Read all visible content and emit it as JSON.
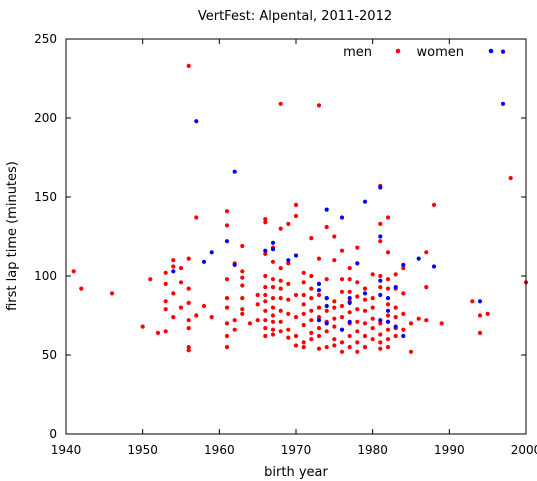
{
  "chart_data": {
    "type": "scatter",
    "title": "VertFest: Alpental, 2011-2012",
    "xlabel": "birth year",
    "ylabel": "first lap time (minutes)",
    "xlim": [
      1940,
      2000
    ],
    "ylim": [
      0,
      250
    ],
    "xticks": [
      "1940",
      "1950",
      "1960",
      "1970",
      "1980",
      "1990",
      "2000"
    ],
    "yticks": [
      "0",
      "50",
      "100",
      "150",
      "200",
      "250"
    ],
    "grid": false,
    "legend_position": "top-right",
    "series": [
      {
        "name": "men",
        "color": "#ff0000",
        "points": [
          [
            1941,
            103
          ],
          [
            1942,
            92
          ],
          [
            1946,
            89
          ],
          [
            1950,
            68
          ],
          [
            1951,
            98
          ],
          [
            1952,
            64
          ],
          [
            1953,
            65
          ],
          [
            1953,
            84
          ],
          [
            1953,
            79
          ],
          [
            1953,
            102
          ],
          [
            1953,
            95
          ],
          [
            1954,
            110
          ],
          [
            1954,
            106
          ],
          [
            1954,
            89
          ],
          [
            1954,
            74
          ],
          [
            1955,
            105
          ],
          [
            1955,
            96
          ],
          [
            1955,
            80
          ],
          [
            1956,
            233
          ],
          [
            1956,
            111
          ],
          [
            1956,
            92
          ],
          [
            1956,
            83
          ],
          [
            1956,
            72
          ],
          [
            1956,
            67
          ],
          [
            1956,
            55
          ],
          [
            1956,
            53
          ],
          [
            1957,
            137
          ],
          [
            1957,
            75
          ],
          [
            1958,
            81
          ],
          [
            1959,
            74
          ],
          [
            1961,
            141
          ],
          [
            1961,
            132
          ],
          [
            1961,
            98
          ],
          [
            1961,
            86
          ],
          [
            1961,
            80
          ],
          [
            1961,
            70
          ],
          [
            1961,
            62
          ],
          [
            1961,
            55
          ],
          [
            1962,
            108
          ],
          [
            1962,
            72
          ],
          [
            1962,
            66
          ],
          [
            1963,
            119
          ],
          [
            1963,
            103
          ],
          [
            1963,
            99
          ],
          [
            1963,
            94
          ],
          [
            1963,
            86
          ],
          [
            1963,
            79
          ],
          [
            1963,
            76
          ],
          [
            1964,
            70
          ],
          [
            1965,
            88
          ],
          [
            1965,
            82
          ],
          [
            1965,
            72
          ],
          [
            1966,
            136
          ],
          [
            1966,
            134
          ],
          [
            1966,
            114
          ],
          [
            1966,
            100
          ],
          [
            1966,
            93
          ],
          [
            1966,
            88
          ],
          [
            1966,
            84
          ],
          [
            1966,
            78
          ],
          [
            1966,
            72
          ],
          [
            1966,
            67
          ],
          [
            1966,
            62
          ],
          [
            1967,
            118
          ],
          [
            1967,
            109
          ],
          [
            1967,
            98
          ],
          [
            1967,
            93
          ],
          [
            1967,
            86
          ],
          [
            1967,
            80
          ],
          [
            1967,
            75
          ],
          [
            1967,
            71
          ],
          [
            1967,
            66
          ],
          [
            1967,
            63
          ],
          [
            1968,
            209
          ],
          [
            1968,
            130
          ],
          [
            1968,
            105
          ],
          [
            1968,
            97
          ],
          [
            1968,
            92
          ],
          [
            1968,
            86
          ],
          [
            1968,
            78
          ],
          [
            1968,
            71
          ],
          [
            1968,
            65
          ],
          [
            1969,
            133
          ],
          [
            1969,
            108
          ],
          [
            1969,
            95
          ],
          [
            1969,
            85
          ],
          [
            1969,
            76
          ],
          [
            1969,
            66
          ],
          [
            1969,
            61
          ],
          [
            1970,
            145
          ],
          [
            1970,
            138
          ],
          [
            1970,
            88
          ],
          [
            1970,
            74
          ],
          [
            1970,
            62
          ],
          [
            1970,
            56
          ],
          [
            1971,
            102
          ],
          [
            1971,
            96
          ],
          [
            1971,
            88
          ],
          [
            1971,
            82
          ],
          [
            1971,
            76
          ],
          [
            1971,
            69
          ],
          [
            1971,
            58
          ],
          [
            1971,
            55
          ],
          [
            1972,
            124
          ],
          [
            1972,
            100
          ],
          [
            1972,
            92
          ],
          [
            1972,
            86
          ],
          [
            1972,
            78
          ],
          [
            1972,
            72
          ],
          [
            1972,
            64
          ],
          [
            1972,
            60
          ],
          [
            1973,
            208
          ],
          [
            1973,
            111
          ],
          [
            1973,
            95
          ],
          [
            1973,
            88
          ],
          [
            1973,
            80
          ],
          [
            1973,
            74
          ],
          [
            1973,
            67
          ],
          [
            1973,
            62
          ],
          [
            1973,
            54
          ],
          [
            1974,
            131
          ],
          [
            1974,
            98
          ],
          [
            1974,
            86
          ],
          [
            1974,
            78
          ],
          [
            1974,
            71
          ],
          [
            1974,
            65
          ],
          [
            1974,
            55
          ],
          [
            1975,
            125
          ],
          [
            1975,
            110
          ],
          [
            1975,
            84
          ],
          [
            1975,
            80
          ],
          [
            1975,
            73
          ],
          [
            1975,
            68
          ],
          [
            1975,
            60
          ],
          [
            1975,
            56
          ],
          [
            1976,
            116
          ],
          [
            1976,
            98
          ],
          [
            1976,
            90
          ],
          [
            1976,
            81
          ],
          [
            1976,
            74
          ],
          [
            1976,
            66
          ],
          [
            1976,
            58
          ],
          [
            1976,
            52
          ],
          [
            1977,
            105
          ],
          [
            1977,
            98
          ],
          [
            1977,
            90
          ],
          [
            1977,
            84
          ],
          [
            1977,
            77
          ],
          [
            1977,
            70
          ],
          [
            1977,
            62
          ],
          [
            1977,
            55
          ],
          [
            1978,
            118
          ],
          [
            1978,
            96
          ],
          [
            1978,
            87
          ],
          [
            1978,
            79
          ],
          [
            1978,
            71
          ],
          [
            1978,
            65
          ],
          [
            1978,
            58
          ],
          [
            1978,
            52
          ],
          [
            1979,
            92
          ],
          [
            1979,
            85
          ],
          [
            1979,
            78
          ],
          [
            1979,
            70
          ],
          [
            1979,
            62
          ],
          [
            1979,
            55
          ],
          [
            1980,
            101
          ],
          [
            1980,
            86
          ],
          [
            1980,
            80
          ],
          [
            1980,
            73
          ],
          [
            1980,
            67
          ],
          [
            1980,
            60
          ],
          [
            1981,
            157
          ],
          [
            1981,
            133
          ],
          [
            1981,
            122
          ],
          [
            1981,
            100
          ],
          [
            1981,
            93
          ],
          [
            1981,
            70
          ],
          [
            1981,
            63
          ],
          [
            1981,
            58
          ],
          [
            1981,
            54
          ],
          [
            1982,
            137
          ],
          [
            1982,
            115
          ],
          [
            1982,
            98
          ],
          [
            1982,
            92
          ],
          [
            1982,
            82
          ],
          [
            1982,
            75
          ],
          [
            1982,
            71
          ],
          [
            1982,
            66
          ],
          [
            1982,
            60
          ],
          [
            1982,
            55
          ],
          [
            1983,
            101
          ],
          [
            1983,
            92
          ],
          [
            1983,
            80
          ],
          [
            1983,
            74
          ],
          [
            1983,
            67
          ],
          [
            1983,
            62
          ],
          [
            1984,
            105
          ],
          [
            1984,
            89
          ],
          [
            1984,
            76
          ],
          [
            1984,
            66
          ],
          [
            1985,
            52
          ],
          [
            1985,
            70
          ],
          [
            1986,
            73
          ],
          [
            1987,
            115
          ],
          [
            1987,
            93
          ],
          [
            1987,
            72
          ],
          [
            1988,
            145
          ],
          [
            1989,
            70
          ],
          [
            1993,
            84
          ],
          [
            1994,
            64
          ],
          [
            1994,
            75
          ],
          [
            1995,
            76
          ],
          [
            1998,
            162
          ],
          [
            2000,
            96
          ]
        ]
      },
      {
        "name": "women",
        "color": "#0000ff",
        "points": [
          [
            1954,
            103
          ],
          [
            1957,
            198
          ],
          [
            1958,
            109
          ],
          [
            1959,
            115
          ],
          [
            1961,
            122
          ],
          [
            1962,
            166
          ],
          [
            1962,
            107
          ],
          [
            1966,
            116
          ],
          [
            1967,
            121
          ],
          [
            1967,
            117
          ],
          [
            1969,
            110
          ],
          [
            1970,
            113
          ],
          [
            1973,
            95
          ],
          [
            1973,
            91
          ],
          [
            1973,
            72
          ],
          [
            1974,
            142
          ],
          [
            1974,
            86
          ],
          [
            1974,
            81
          ],
          [
            1974,
            70
          ],
          [
            1976,
            137
          ],
          [
            1976,
            66
          ],
          [
            1977,
            86
          ],
          [
            1977,
            83
          ],
          [
            1977,
            71
          ],
          [
            1978,
            108
          ],
          [
            1979,
            147
          ],
          [
            1979,
            89
          ],
          [
            1981,
            156
          ],
          [
            1981,
            125
          ],
          [
            1981,
            97
          ],
          [
            1981,
            88
          ],
          [
            1981,
            72
          ],
          [
            1982,
            86
          ],
          [
            1982,
            78
          ],
          [
            1982,
            71
          ],
          [
            1983,
            93
          ],
          [
            1983,
            68
          ],
          [
            1984,
            107
          ],
          [
            1984,
            62
          ],
          [
            1986,
            111
          ],
          [
            1988,
            106
          ],
          [
            1994,
            84
          ],
          [
            1997,
            209
          ],
          [
            1997,
            242
          ]
        ]
      }
    ]
  }
}
